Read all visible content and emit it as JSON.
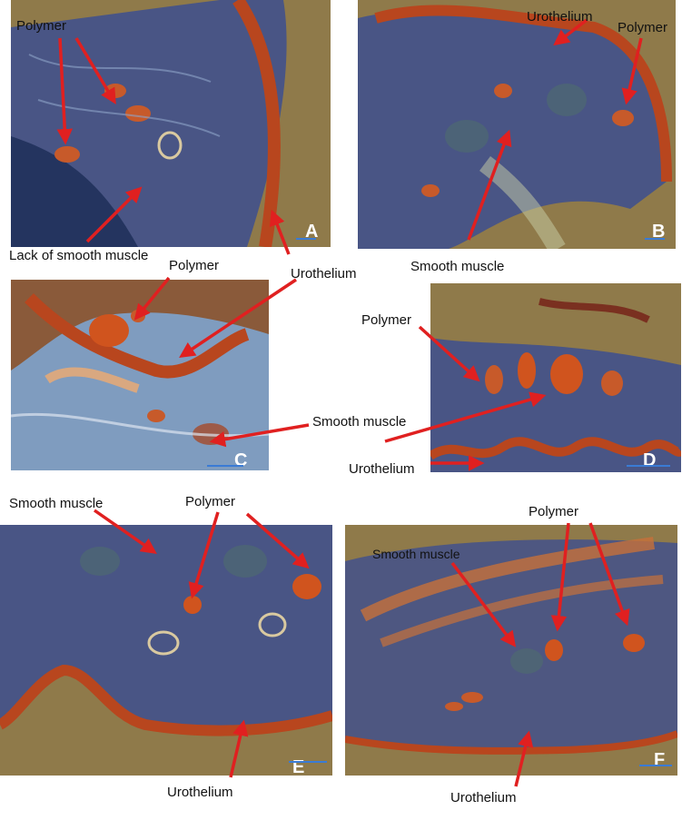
{
  "figure": {
    "panels": [
      {
        "letter": "A"
      },
      {
        "letter": "B"
      },
      {
        "letter": "C"
      },
      {
        "letter": "D"
      },
      {
        "letter": "E"
      },
      {
        "letter": "F"
      }
    ],
    "labels": {
      "a_polymer": "Polymer",
      "a_lack_smooth_muscle": "Lack of smooth muscle",
      "a_urothelium": "Urothelium",
      "b_urothelium": "Urothelium",
      "b_polymer": "Polymer",
      "b_smooth_muscle": "Smooth muscle",
      "c_polymer": "Polymer",
      "cd_smooth_muscle": "Smooth muscle",
      "d_polymer": "Polymer",
      "d_urothelium": "Urothelium",
      "e_smooth_muscle": "Smooth muscle",
      "e_polymer": "Polymer",
      "e_urothelium": "Urothelium",
      "f_polymer": "Polymer",
      "f_smooth_muscle": "Smooth muscle",
      "f_urothelium": "Urothelium"
    },
    "colors": {
      "arrow": "#e02020",
      "stain_blue": "#3d4f8f",
      "stain_red": "#b8461e",
      "background": "#8f7a4a",
      "scale_bar": "#3a7bd5"
    }
  }
}
